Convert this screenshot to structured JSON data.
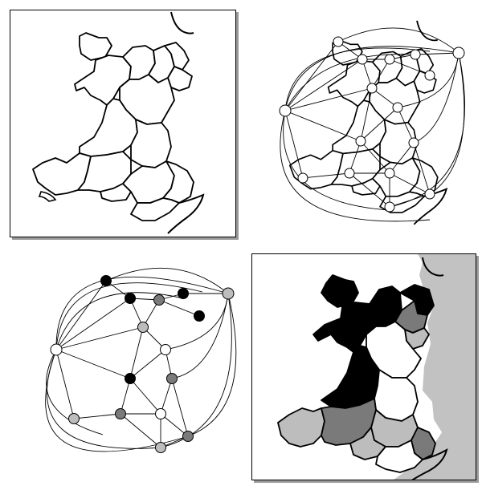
{
  "colors": {
    "background": "#ffffff",
    "black": "#000000",
    "dark_gray": "#7a7a7a",
    "light_gray": "#bdbdbd",
    "white": "#ffffff",
    "sea": "#c2c2c2"
  },
  "regions": [
    {
      "id": "anglesey",
      "color": "black"
    },
    {
      "id": "gwynedd",
      "color": "black"
    },
    {
      "id": "conwy",
      "color": "black"
    },
    {
      "id": "denbighshire",
      "color": "dark_gray"
    },
    {
      "id": "flintshire",
      "color": "black"
    },
    {
      "id": "wrexham",
      "color": "light_gray"
    },
    {
      "id": "ceredigion",
      "color": "light_gray"
    },
    {
      "id": "powys_north",
      "color": "white"
    },
    {
      "id": "powys_south",
      "color": "white"
    },
    {
      "id": "carmarthenshire",
      "color": "black"
    },
    {
      "id": "pembrokeshire",
      "color": "light_gray"
    },
    {
      "id": "swansea",
      "color": "dark_gray"
    },
    {
      "id": "bridgend",
      "color": "light_gray"
    },
    {
      "id": "glamorgan",
      "color": "white"
    },
    {
      "id": "gwent",
      "color": "dark_gray"
    }
  ]
}
